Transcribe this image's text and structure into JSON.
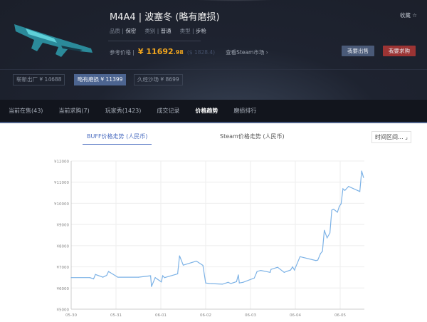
{
  "item": {
    "title": "M4A4 | 波塞冬 (略有磨损)",
    "meta": [
      {
        "label": "品质 |",
        "value": "保密"
      },
      {
        "label": "类别 |",
        "value": "普通"
      },
      {
        "label": "类型 |",
        "value": "步枪"
      }
    ],
    "ref_price_label": "参考价格 |",
    "price_main": "¥ 11692",
    "price_decimal": ".98",
    "price_usd": "($ 1828.4)",
    "steam_link": "查看Steam市场 ›",
    "favorite": "收藏 ☆",
    "sell_button": "我要出售",
    "buy_button": "我要求购"
  },
  "wear_options": [
    {
      "label": "崭新出厂 ¥ 14688",
      "active": false
    },
    {
      "label": "略有磨损 ¥ 11399",
      "active": true
    },
    {
      "label": "久经沙场 ¥ 8699",
      "active": false
    }
  ],
  "tabs": [
    {
      "label": "当前在售(43)"
    },
    {
      "label": "当前求购(7)"
    },
    {
      "label": "玩家秀(1423)"
    },
    {
      "label": "成交记录"
    },
    {
      "label": "价格趋势",
      "active": true
    },
    {
      "label": "磨损排行"
    }
  ],
  "chart_tabs": {
    "buff": "BUFF价格走势 (人民币)",
    "steam": "Steam价格走势 (人民币)",
    "range": "时间区间... ⌟"
  },
  "colors": {
    "line": "#7cb2e6",
    "accent": "#f0a51e",
    "sell": "#4a5a78",
    "buy": "#9c3434"
  },
  "chart_data": {
    "type": "line",
    "ylim": [
      5000,
      12000
    ],
    "grid": true,
    "yticks": [
      "¥5000",
      "¥6000",
      "¥7000",
      "¥8000",
      "¥9000",
      "¥10000",
      "¥11000",
      "¥12000"
    ],
    "xticks": [
      "05-30",
      "05-31",
      "06-01",
      "06-02",
      "06-03",
      "06-04",
      "06-05"
    ],
    "points": [
      [
        "05-30 00:00",
        6490
      ],
      [
        "05-30 10:00",
        6490
      ],
      [
        "05-30 12:00",
        6430
      ],
      [
        "05-30 13:00",
        6640
      ],
      [
        "05-30 17:00",
        6510
      ],
      [
        "05-30 19:00",
        6600
      ],
      [
        "05-30 20:00",
        6780
      ],
      [
        "05-31 01:00",
        6510
      ],
      [
        "05-31 12:00",
        6510
      ],
      [
        "05-31 18:30",
        6580
      ],
      [
        "05-31 19:00",
        6070
      ],
      [
        "05-31 21:00",
        6490
      ],
      [
        "06-01 00:15",
        6290
      ],
      [
        "06-01 01:00",
        6580
      ],
      [
        "06-01 02:00",
        6490
      ],
      [
        "06-01 09:00",
        6670
      ],
      [
        "06-01 10:00",
        7520
      ],
      [
        "06-01 12:00",
        7080
      ],
      [
        "06-01 19:00",
        7270
      ],
      [
        "06-01 22:30",
        7070
      ],
      [
        "06-02 00:00",
        6240
      ],
      [
        "06-02 02:00",
        6210
      ],
      [
        "06-02 09:00",
        6180
      ],
      [
        "06-02 12:00",
        6270
      ],
      [
        "06-02 13:30",
        6210
      ],
      [
        "06-02 16:30",
        6300
      ],
      [
        "06-02 17:30",
        6620
      ],
      [
        "06-02 18:00",
        6240
      ],
      [
        "06-02 20:00",
        6270
      ],
      [
        "06-03 02:00",
        6470
      ],
      [
        "06-03 03:30",
        6780
      ],
      [
        "06-03 05:30",
        6830
      ],
      [
        "06-03 10:30",
        6740
      ],
      [
        "06-03 11:00",
        6880
      ],
      [
        "06-03 14:30",
        6980
      ],
      [
        "06-03 18:00",
        6740
      ],
      [
        "06-03 21:30",
        6850
      ],
      [
        "06-03 22:30",
        7000
      ],
      [
        "06-03 23:30",
        6850
      ],
      [
        "06-04 01:00",
        7160
      ],
      [
        "06-04 02:30",
        7480
      ],
      [
        "06-04 11:00",
        7300
      ],
      [
        "06-04 12:00",
        7320
      ],
      [
        "06-04 13:30",
        7630
      ],
      [
        "06-04 14:30",
        7740
      ],
      [
        "06-04 15:30",
        8730
      ],
      [
        "06-04 17:00",
        8370
      ],
      [
        "06-04 18:30",
        8600
      ],
      [
        "06-04 19:30",
        9680
      ],
      [
        "06-04 20:30",
        9720
      ],
      [
        "06-04 22:30",
        9580
      ],
      [
        "06-04 23:30",
        9850
      ],
      [
        "06-05 00:30",
        9980
      ],
      [
        "06-05 01:30",
        10690
      ],
      [
        "06-05 02:30",
        10610
      ],
      [
        "06-05 04:30",
        10800
      ],
      [
        "06-05 10:30",
        10560
      ],
      [
        "06-05 11:30",
        11530
      ],
      [
        "06-05 12:30",
        11220
      ]
    ]
  }
}
